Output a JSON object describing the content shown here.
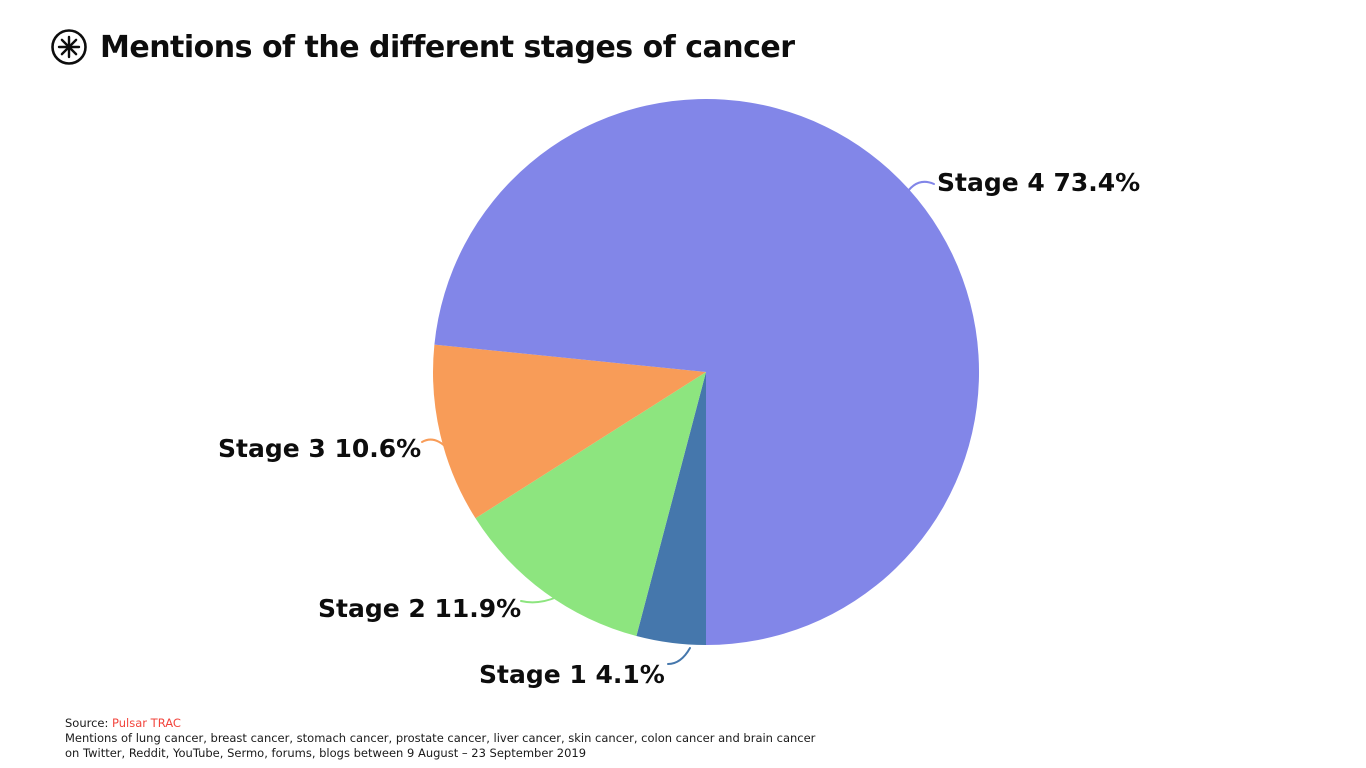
{
  "header": {
    "title": "Mentions of the different stages of cancer",
    "logo": "pulsar-starburst-icon"
  },
  "chart_data": {
    "type": "pie",
    "title": "Mentions of the different stages of cancer",
    "start_angle_deg": 90,
    "direction": "clockwise",
    "legend_position": "outside-labels-with-leader-lines",
    "slices": [
      {
        "label": "Stage 1",
        "value": 4.1,
        "color": "#4577ac",
        "display": "Stage 1 4.1%"
      },
      {
        "label": "Stage 2",
        "value": 11.9,
        "color": "#8de57f",
        "display": "Stage 2 11.9%"
      },
      {
        "label": "Stage 3",
        "value": 10.6,
        "color": "#f89c58",
        "display": "Stage 3 10.6%"
      },
      {
        "label": "Stage 4",
        "value": 73.4,
        "color": "#8286e8",
        "display": "Stage 4 73.4%"
      }
    ]
  },
  "footer": {
    "source_label": "Source:",
    "source_name": "Pulsar TRAC",
    "source_color": "#f2453d",
    "line1": "Mentions of lung cancer, breast cancer, stomach cancer, prostate cancer, liver cancer, skin cancer, colon cancer and brain cancer",
    "line2": "on Twitter, Reddit, YouTube, Sermo, forums, blogs between 9 August – 23 September 2019"
  }
}
